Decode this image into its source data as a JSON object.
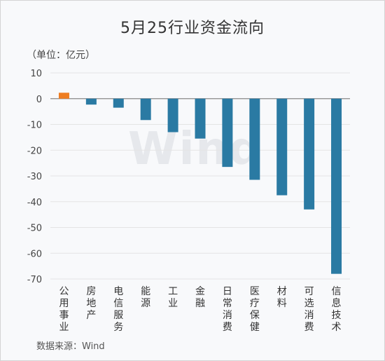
{
  "title": "5月25行业资金流向",
  "unit_label": "（单位：亿元）",
  "source": "数据来源：Wind",
  "watermark": "Wind",
  "colors": {
    "positive": "#ee7d21",
    "negative": "#2a7aa3",
    "grid": "#e4e4e4",
    "axis": "#888888"
  },
  "chart_data": {
    "type": "bar",
    "title": "5月25行业资金流向",
    "ylabel": "（单位：亿元）",
    "xlabel": "",
    "ylim": [
      -70,
      10
    ],
    "yticks": [
      10,
      0,
      -10,
      -20,
      -30,
      -40,
      -50,
      -60,
      -70
    ],
    "grid": true,
    "categories": [
      "公用事业",
      "房地产",
      "电信服务",
      "能源",
      "工业",
      "金融",
      "日常消费",
      "医疗保健",
      "材料",
      "可选消费",
      "信息技术"
    ],
    "values": [
      2.3,
      -2.3,
      -3.5,
      -8.3,
      -13.0,
      -15.5,
      -26.5,
      -31.5,
      -37.5,
      -43.0,
      -68.0
    ]
  }
}
